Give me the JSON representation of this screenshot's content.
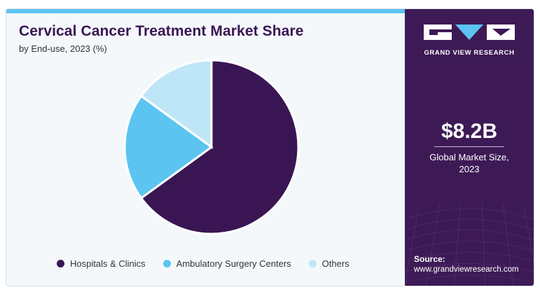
{
  "chart_data": {
    "type": "pie",
    "title": "Cervical Cancer Treatment Market Share",
    "subtitle": "by End-use, 2023 (%)",
    "categories": [
      "Hospitals & Clinics",
      "Ambulatory Surgery Centers",
      "Others"
    ],
    "values": [
      65,
      20,
      15
    ],
    "colors": [
      "#3a1553",
      "#5bc4f1",
      "#bfe6f7"
    ],
    "legend": "bottom"
  },
  "sidebar": {
    "brand_name": "GRAND VIEW RESEARCH",
    "market_size": "$8.2B",
    "market_size_label": "Global Market Size,",
    "market_size_year": "2023",
    "source_label": "Source:",
    "source_url": "www.grandviewresearch.com"
  }
}
